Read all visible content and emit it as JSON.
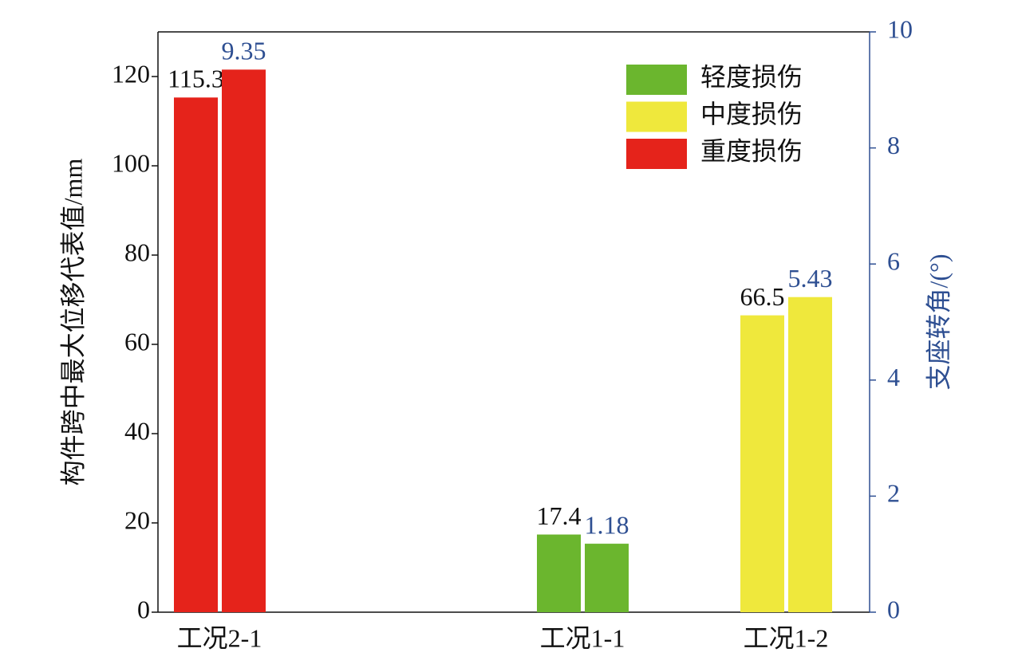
{
  "chart_data": {
    "type": "bar",
    "categories": [
      "工况2-1",
      "工况1-1",
      "工况1-2"
    ],
    "category_colors": [
      "#e5231b",
      "#6bb62e",
      "#efe83c"
    ],
    "series": [
      {
        "values": [
          115.3,
          17.4,
          66.5
        ]
      },
      {
        "values": [
          9.35,
          1.18,
          5.43
        ],
        "axis": "y2"
      }
    ],
    "legend": [
      {
        "name": "轻度损伤",
        "color": "#6bb62e"
      },
      {
        "name": "中度损伤",
        "color": "#efe83c"
      },
      {
        "name": "重度损伤",
        "color": "#e5231b"
      }
    ],
    "legend_position": "upper right",
    "y_label": "构件跨中最大位移代表值/mm",
    "y2_label": "支座转角/(°)",
    "y2_color": "#2e4f92",
    "ylim": [
      0,
      130
    ],
    "yticks": [
      0,
      20,
      40,
      60,
      80,
      100,
      120
    ],
    "y2lim": [
      0,
      10
    ],
    "y2ticks": [
      0,
      2,
      4,
      6,
      8,
      10
    ]
  }
}
